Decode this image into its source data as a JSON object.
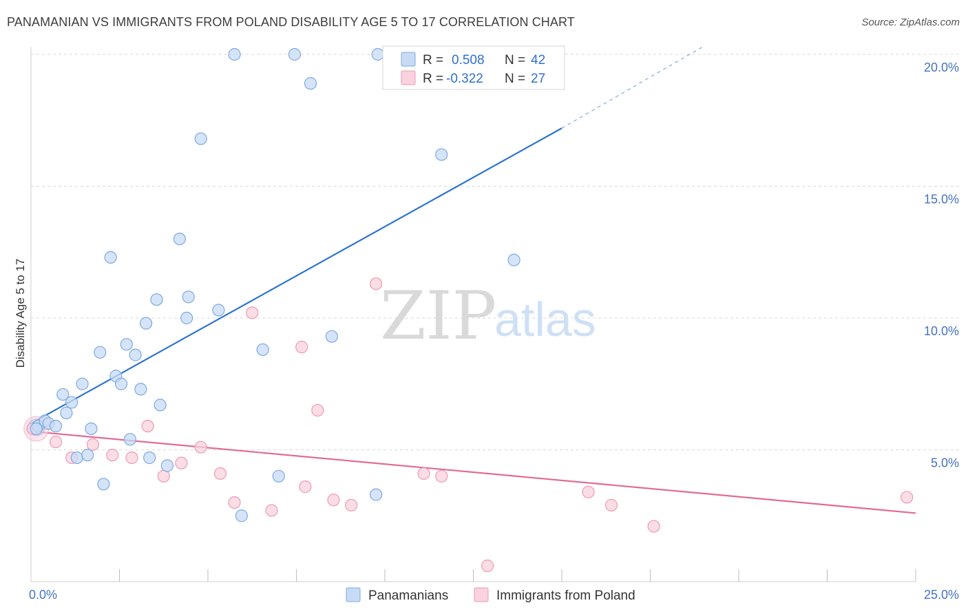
{
  "title": "PANAMANIAN VS IMMIGRANTS FROM POLAND DISABILITY AGE 5 TO 17 CORRELATION CHART",
  "source": "Source: ZipAtlas.com",
  "watermark": {
    "zip": "ZIP",
    "atlas": "atlas"
  },
  "colors": {
    "blue_fill": "#c7dbf5",
    "blue_stroke": "#7ea8e0",
    "blue_line": "#2b73d2",
    "pink_fill": "#f9d2de",
    "pink_stroke": "#ec9ab4",
    "pink_line": "#e06a96",
    "grid": "#d8d8d8",
    "axis_label": "#4472c4"
  },
  "legend_box": {
    "r_label": "R =",
    "n_label": "N =",
    "rows": [
      {
        "series": "blue",
        "r": "0.508",
        "n": "42"
      },
      {
        "series": "pink",
        "r": "-0.322",
        "n": "27"
      }
    ]
  },
  "bottom_legend": [
    "Panamanians",
    "Immigrants from Poland"
  ],
  "chart_data": {
    "type": "scatter",
    "title": "PANAMANIAN VS IMMIGRANTS FROM POLAND DISABILITY AGE 5 TO 17 CORRELATION CHART",
    "xlabel": "",
    "ylabel": "Disability Age 5 to 17",
    "xlim": [
      0,
      25
    ],
    "ylim": [
      0,
      20.5
    ],
    "x_tick_labels": [
      {
        "value": 0,
        "label": "0.0%"
      },
      {
        "value": 25,
        "label": "25.0%"
      }
    ],
    "x_minor_ticks": [
      2.5,
      5,
      7.5,
      10,
      12.5,
      15,
      17.5,
      20,
      22.5,
      25
    ],
    "y_ticks": [
      {
        "value": 5,
        "label": "5.0%"
      },
      {
        "value": 10,
        "label": "10.0%"
      },
      {
        "value": 15,
        "label": "15.0%"
      },
      {
        "value": 20,
        "label": "20.0%"
      }
    ],
    "grid": "horizontal dashed",
    "legend_placement": "top-center",
    "series": [
      {
        "name": "Panamanians",
        "color": "blue",
        "points": [
          [
            0.2,
            5.9
          ],
          [
            0.4,
            6.1
          ],
          [
            0.5,
            6.0
          ],
          [
            0.7,
            5.9
          ],
          [
            0.9,
            7.1
          ],
          [
            1.0,
            6.4
          ],
          [
            1.15,
            6.8
          ],
          [
            1.3,
            4.7
          ],
          [
            1.45,
            7.5
          ],
          [
            1.6,
            4.8
          ],
          [
            1.7,
            5.8
          ],
          [
            1.95,
            8.7
          ],
          [
            2.05,
            3.7
          ],
          [
            2.25,
            12.3
          ],
          [
            2.4,
            7.8
          ],
          [
            2.55,
            7.5
          ],
          [
            2.7,
            9.0
          ],
          [
            2.8,
            5.4
          ],
          [
            2.95,
            8.6
          ],
          [
            3.1,
            7.3
          ],
          [
            3.25,
            9.8
          ],
          [
            3.35,
            4.7
          ],
          [
            3.55,
            10.7
          ],
          [
            3.65,
            6.7
          ],
          [
            3.85,
            4.4
          ],
          [
            4.2,
            13.0
          ],
          [
            4.4,
            10.0
          ],
          [
            4.45,
            10.8
          ],
          [
            4.8,
            16.8
          ],
          [
            5.3,
            10.3
          ],
          [
            5.75,
            20.0
          ],
          [
            5.95,
            2.5
          ],
          [
            6.55,
            8.8
          ],
          [
            7.0,
            4.0
          ],
          [
            7.45,
            20.0
          ],
          [
            7.9,
            18.9
          ],
          [
            8.5,
            9.3
          ],
          [
            9.75,
            3.3
          ],
          [
            9.8,
            20.0
          ],
          [
            11.6,
            16.2
          ],
          [
            13.65,
            12.2
          ],
          [
            0.15,
            5.8
          ]
        ],
        "trend": {
          "from": [
            0,
            6.0
          ],
          "to": [
            15,
            17.2
          ],
          "dashed_to": [
            19.0,
            20.3
          ]
        }
      },
      {
        "name": "Immigrants from Poland",
        "color": "pink",
        "points": [
          [
            0.05,
            5.8
          ],
          [
            0.7,
            5.3
          ],
          [
            1.15,
            4.7
          ],
          [
            1.75,
            5.2
          ],
          [
            2.3,
            4.8
          ],
          [
            2.85,
            4.7
          ],
          [
            3.3,
            5.9
          ],
          [
            3.75,
            4.0
          ],
          [
            4.25,
            4.5
          ],
          [
            4.8,
            5.1
          ],
          [
            5.35,
            4.1
          ],
          [
            5.75,
            3.0
          ],
          [
            6.25,
            10.2
          ],
          [
            6.8,
            2.7
          ],
          [
            7.65,
            8.9
          ],
          [
            7.75,
            3.6
          ],
          [
            8.1,
            6.5
          ],
          [
            8.55,
            3.1
          ],
          [
            9.05,
            2.9
          ],
          [
            9.75,
            11.3
          ],
          [
            11.1,
            4.1
          ],
          [
            11.6,
            4.0
          ],
          [
            12.9,
            0.6
          ],
          [
            15.75,
            3.4
          ],
          [
            16.4,
            2.9
          ],
          [
            17.6,
            2.1
          ],
          [
            24.75,
            3.2
          ]
        ],
        "trend": {
          "from": [
            0,
            5.7
          ],
          "to": [
            25,
            2.6
          ]
        }
      }
    ]
  }
}
